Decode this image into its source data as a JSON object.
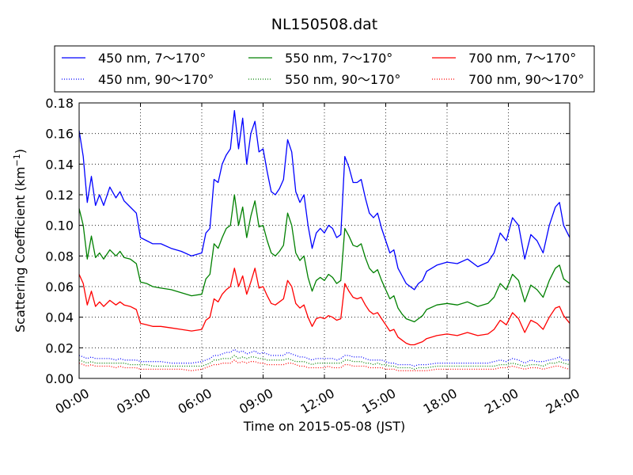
{
  "chart_data": {
    "type": "line",
    "title": "NL150508.dat",
    "xlabel": "Time on 2015-05-08 (JST)",
    "ylabel": "Scattering Coefficient (km",
    "ylabel_sup": "−1",
    "ylabel_end": ")",
    "xlim": [
      0,
      24
    ],
    "ylim": [
      0,
      0.18
    ],
    "grid": true,
    "legend_position": "top-center-outside",
    "x_ticks": [
      {
        "value": 0,
        "label": "00:00"
      },
      {
        "value": 3,
        "label": "03:00"
      },
      {
        "value": 6,
        "label": "06:00"
      },
      {
        "value": 9,
        "label": "09:00"
      },
      {
        "value": 12,
        "label": "12:00"
      },
      {
        "value": 15,
        "label": "15:00"
      },
      {
        "value": 18,
        "label": "18:00"
      },
      {
        "value": 21,
        "label": "21:00"
      },
      {
        "value": 24,
        "label": "24:00"
      }
    ],
    "y_ticks": [
      {
        "value": 0.0,
        "label": "0.00"
      },
      {
        "value": 0.02,
        "label": "0.02"
      },
      {
        "value": 0.04,
        "label": "0.04"
      },
      {
        "value": 0.06,
        "label": "0.06"
      },
      {
        "value": 0.08,
        "label": "0.08"
      },
      {
        "value": 0.1,
        "label": "0.10"
      },
      {
        "value": 0.12,
        "label": "0.12"
      },
      {
        "value": 0.14,
        "label": "0.14"
      },
      {
        "value": 0.16,
        "label": "0.16"
      },
      {
        "value": 0.18,
        "label": "0.18"
      }
    ],
    "x": [
      0,
      0.2,
      0.4,
      0.6,
      0.8,
      1.0,
      1.2,
      1.5,
      1.8,
      2.0,
      2.2,
      2.5,
      2.8,
      3.0,
      3.3,
      3.6,
      4.0,
      4.5,
      5.0,
      5.5,
      6.0,
      6.2,
      6.4,
      6.6,
      6.8,
      7.0,
      7.2,
      7.4,
      7.6,
      7.8,
      8.0,
      8.2,
      8.4,
      8.6,
      8.8,
      9.0,
      9.2,
      9.4,
      9.6,
      9.8,
      10.0,
      10.2,
      10.4,
      10.6,
      10.8,
      11.0,
      11.2,
      11.4,
      11.6,
      11.8,
      12.0,
      12.2,
      12.4,
      12.6,
      12.8,
      13.0,
      13.2,
      13.4,
      13.6,
      13.8,
      14.0,
      14.2,
      14.4,
      14.6,
      14.8,
      15.0,
      15.2,
      15.4,
      15.6,
      15.8,
      16.0,
      16.2,
      16.4,
      16.6,
      16.8,
      17.0,
      17.5,
      18.0,
      18.5,
      19.0,
      19.5,
      20.0,
      20.3,
      20.6,
      20.9,
      21.2,
      21.5,
      21.8,
      22.1,
      22.4,
      22.7,
      23.0,
      23.3,
      23.5,
      23.7,
      24.0
    ],
    "series": [
      {
        "name": "450 nm, 7～170°",
        "color": "#0000ff",
        "style": "solid",
        "values": [
          0.162,
          0.145,
          0.115,
          0.132,
          0.113,
          0.12,
          0.113,
          0.125,
          0.118,
          0.122,
          0.116,
          0.112,
          0.108,
          0.092,
          0.09,
          0.088,
          0.088,
          0.085,
          0.083,
          0.08,
          0.082,
          0.095,
          0.098,
          0.13,
          0.128,
          0.14,
          0.146,
          0.15,
          0.175,
          0.15,
          0.17,
          0.14,
          0.16,
          0.168,
          0.148,
          0.15,
          0.135,
          0.122,
          0.12,
          0.124,
          0.13,
          0.156,
          0.148,
          0.122,
          0.115,
          0.12,
          0.1,
          0.085,
          0.095,
          0.098,
          0.095,
          0.1,
          0.098,
          0.092,
          0.094,
          0.145,
          0.138,
          0.128,
          0.128,
          0.13,
          0.118,
          0.108,
          0.105,
          0.108,
          0.098,
          0.09,
          0.082,
          0.084,
          0.072,
          0.067,
          0.062,
          0.06,
          0.058,
          0.062,
          0.064,
          0.07,
          0.074,
          0.076,
          0.075,
          0.078,
          0.073,
          0.076,
          0.082,
          0.095,
          0.09,
          0.105,
          0.1,
          0.078,
          0.094,
          0.09,
          0.082,
          0.1,
          0.112,
          0.115,
          0.1,
          0.092
        ]
      },
      {
        "name": "550 nm, 7～170°",
        "color": "#008000",
        "style": "solid",
        "values": [
          0.111,
          0.1,
          0.078,
          0.093,
          0.079,
          0.082,
          0.078,
          0.084,
          0.08,
          0.083,
          0.079,
          0.078,
          0.075,
          0.063,
          0.062,
          0.06,
          0.059,
          0.058,
          0.056,
          0.054,
          0.055,
          0.065,
          0.068,
          0.088,
          0.085,
          0.092,
          0.098,
          0.1,
          0.12,
          0.1,
          0.112,
          0.092,
          0.106,
          0.116,
          0.099,
          0.1,
          0.09,
          0.082,
          0.08,
          0.083,
          0.087,
          0.108,
          0.1,
          0.082,
          0.077,
          0.08,
          0.066,
          0.057,
          0.064,
          0.066,
          0.064,
          0.068,
          0.066,
          0.062,
          0.064,
          0.098,
          0.093,
          0.087,
          0.086,
          0.088,
          0.079,
          0.072,
          0.069,
          0.071,
          0.064,
          0.058,
          0.052,
          0.054,
          0.046,
          0.042,
          0.039,
          0.038,
          0.037,
          0.039,
          0.041,
          0.045,
          0.048,
          0.049,
          0.048,
          0.05,
          0.047,
          0.049,
          0.053,
          0.062,
          0.058,
          0.068,
          0.064,
          0.05,
          0.061,
          0.058,
          0.053,
          0.064,
          0.072,
          0.074,
          0.065,
          0.062
        ]
      },
      {
        "name": "700 nm, 7～170°",
        "color": "#ff0000",
        "style": "solid",
        "values": [
          0.068,
          0.062,
          0.048,
          0.057,
          0.047,
          0.05,
          0.047,
          0.051,
          0.048,
          0.05,
          0.048,
          0.047,
          0.045,
          0.036,
          0.035,
          0.034,
          0.034,
          0.033,
          0.032,
          0.031,
          0.032,
          0.038,
          0.04,
          0.052,
          0.05,
          0.055,
          0.058,
          0.06,
          0.072,
          0.06,
          0.067,
          0.055,
          0.063,
          0.072,
          0.059,
          0.06,
          0.054,
          0.049,
          0.048,
          0.05,
          0.052,
          0.064,
          0.06,
          0.049,
          0.046,
          0.048,
          0.04,
          0.034,
          0.039,
          0.04,
          0.039,
          0.041,
          0.04,
          0.038,
          0.039,
          0.062,
          0.057,
          0.053,
          0.052,
          0.053,
          0.048,
          0.044,
          0.042,
          0.043,
          0.039,
          0.035,
          0.031,
          0.032,
          0.027,
          0.025,
          0.023,
          0.022,
          0.022,
          0.023,
          0.024,
          0.026,
          0.028,
          0.029,
          0.028,
          0.03,
          0.028,
          0.029,
          0.032,
          0.038,
          0.035,
          0.043,
          0.039,
          0.03,
          0.038,
          0.036,
          0.032,
          0.04,
          0.046,
          0.047,
          0.041,
          0.036
        ]
      },
      {
        "name": "450 nm, 90～170°",
        "color": "#0000ff",
        "style": "dotted",
        "values": [
          0.015,
          0.014,
          0.013,
          0.014,
          0.013,
          0.013,
          0.013,
          0.013,
          0.012,
          0.013,
          0.012,
          0.012,
          0.012,
          0.011,
          0.011,
          0.011,
          0.011,
          0.01,
          0.01,
          0.01,
          0.011,
          0.012,
          0.013,
          0.015,
          0.015,
          0.016,
          0.017,
          0.017,
          0.019,
          0.017,
          0.018,
          0.016,
          0.017,
          0.018,
          0.016,
          0.017,
          0.016,
          0.015,
          0.015,
          0.015,
          0.015,
          0.017,
          0.016,
          0.015,
          0.014,
          0.014,
          0.013,
          0.012,
          0.013,
          0.013,
          0.013,
          0.013,
          0.013,
          0.012,
          0.013,
          0.015,
          0.015,
          0.014,
          0.014,
          0.014,
          0.013,
          0.012,
          0.012,
          0.012,
          0.012,
          0.011,
          0.01,
          0.01,
          0.009,
          0.009,
          0.009,
          0.009,
          0.008,
          0.009,
          0.009,
          0.009,
          0.01,
          0.01,
          0.01,
          0.01,
          0.01,
          0.01,
          0.011,
          0.012,
          0.011,
          0.013,
          0.012,
          0.01,
          0.012,
          0.011,
          0.011,
          0.012,
          0.013,
          0.014,
          0.012,
          0.012
        ]
      },
      {
        "name": "550 nm, 90～170°",
        "color": "#008000",
        "style": "dotted",
        "values": [
          0.012,
          0.011,
          0.01,
          0.011,
          0.01,
          0.01,
          0.01,
          0.01,
          0.01,
          0.01,
          0.01,
          0.009,
          0.009,
          0.009,
          0.009,
          0.008,
          0.008,
          0.008,
          0.008,
          0.008,
          0.008,
          0.009,
          0.01,
          0.012,
          0.012,
          0.013,
          0.013,
          0.013,
          0.015,
          0.013,
          0.014,
          0.013,
          0.014,
          0.014,
          0.013,
          0.013,
          0.012,
          0.012,
          0.012,
          0.012,
          0.012,
          0.013,
          0.012,
          0.011,
          0.011,
          0.011,
          0.01,
          0.009,
          0.01,
          0.01,
          0.01,
          0.01,
          0.01,
          0.01,
          0.01,
          0.012,
          0.012,
          0.011,
          0.011,
          0.011,
          0.01,
          0.01,
          0.009,
          0.01,
          0.009,
          0.009,
          0.008,
          0.008,
          0.007,
          0.007,
          0.007,
          0.007,
          0.006,
          0.007,
          0.007,
          0.007,
          0.008,
          0.008,
          0.008,
          0.008,
          0.008,
          0.008,
          0.008,
          0.009,
          0.009,
          0.01,
          0.009,
          0.008,
          0.009,
          0.009,
          0.008,
          0.01,
          0.01,
          0.011,
          0.01,
          0.009
        ]
      },
      {
        "name": "700 nm, 90～170°",
        "color": "#ff0000",
        "style": "dotted",
        "values": [
          0.01,
          0.009,
          0.008,
          0.009,
          0.008,
          0.008,
          0.008,
          0.008,
          0.007,
          0.008,
          0.007,
          0.007,
          0.007,
          0.006,
          0.006,
          0.006,
          0.006,
          0.006,
          0.006,
          0.005,
          0.006,
          0.007,
          0.008,
          0.009,
          0.009,
          0.01,
          0.01,
          0.01,
          0.012,
          0.01,
          0.011,
          0.01,
          0.011,
          0.011,
          0.01,
          0.01,
          0.009,
          0.009,
          0.009,
          0.009,
          0.009,
          0.01,
          0.01,
          0.009,
          0.008,
          0.008,
          0.007,
          0.007,
          0.007,
          0.007,
          0.007,
          0.008,
          0.007,
          0.007,
          0.007,
          0.009,
          0.009,
          0.008,
          0.008,
          0.008,
          0.008,
          0.007,
          0.007,
          0.007,
          0.007,
          0.006,
          0.006,
          0.006,
          0.005,
          0.005,
          0.005,
          0.005,
          0.005,
          0.005,
          0.005,
          0.005,
          0.006,
          0.006,
          0.006,
          0.006,
          0.006,
          0.006,
          0.006,
          0.007,
          0.007,
          0.008,
          0.007,
          0.006,
          0.007,
          0.007,
          0.006,
          0.007,
          0.008,
          0.008,
          0.007,
          0.006
        ]
      }
    ]
  }
}
